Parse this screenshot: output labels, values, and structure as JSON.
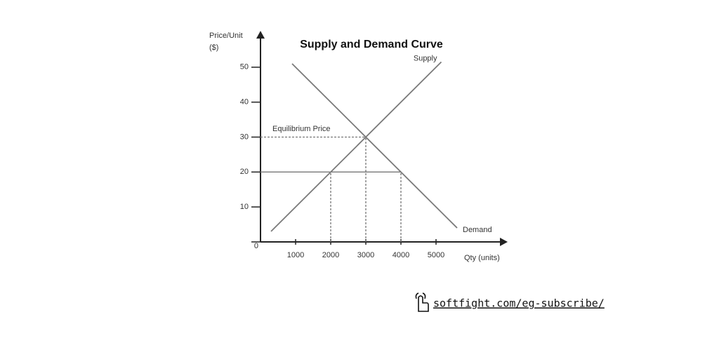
{
  "chart_data": {
    "type": "line",
    "title": "Supply and Demand Curve",
    "ylabel": [
      "Price/Unit",
      "($)"
    ],
    "xlabel": "Qty (units)",
    "annotation": "Equilibrium Price",
    "xlim": [
      0,
      7000
    ],
    "ylim": [
      0,
      60
    ],
    "xticks": [
      1000,
      2000,
      3000,
      4000,
      5000
    ],
    "yticks": [
      0,
      10,
      20,
      30,
      40,
      50
    ],
    "series": [
      {
        "name": "Supply",
        "color": "#7a7a7a",
        "x": [
          300,
          5150
        ],
        "values": [
          3,
          51.5
        ]
      },
      {
        "name": "Demand",
        "color": "#7a7a7a",
        "x": [
          900,
          5600
        ],
        "values": [
          51,
          4
        ]
      }
    ],
    "guides": [
      {
        "x": [
          0,
          4000
        ],
        "values": [
          20,
          20
        ],
        "dashed": false
      },
      {
        "x": [
          0,
          3000
        ],
        "values": [
          30,
          30
        ],
        "dashed": true
      },
      {
        "x": [
          2000,
          2000
        ],
        "values": [
          0,
          20
        ],
        "dashed": true
      },
      {
        "x": [
          3000,
          3000
        ],
        "values": [
          0,
          30
        ],
        "dashed": true
      },
      {
        "x": [
          4000,
          4000
        ],
        "values": [
          0,
          20
        ],
        "dashed": true
      }
    ]
  },
  "footer": {
    "link": "softfight.com/eg-subscribe/"
  }
}
